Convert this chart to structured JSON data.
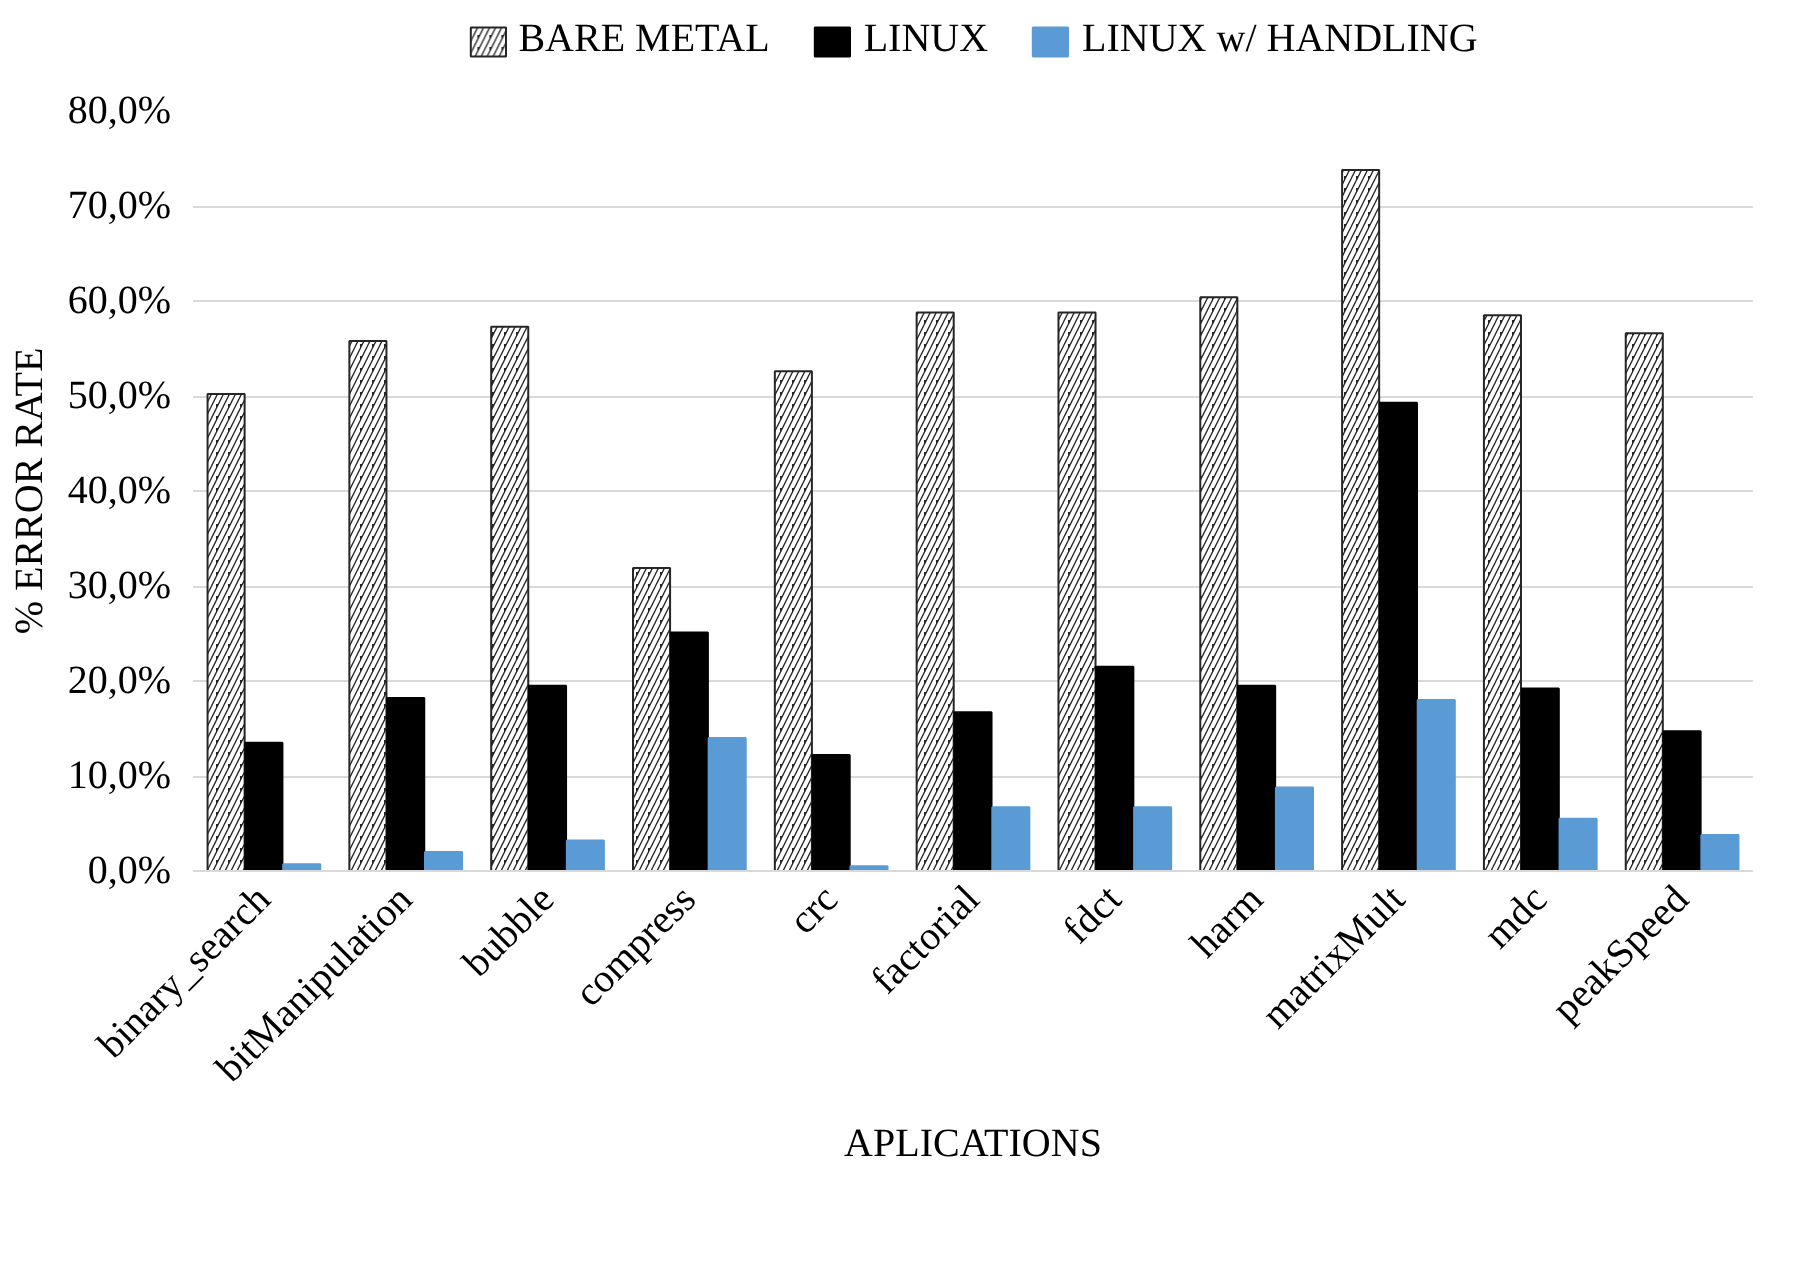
{
  "chart_data": {
    "type": "bar",
    "xlabel": "APLICATIONS",
    "ylabel": "% ERROR RATE",
    "categories": [
      "binary_search",
      "bitManipulation",
      "bubble",
      "compress",
      "crc",
      "factorial",
      "fdct",
      "harm",
      "matrixMult",
      "mdc",
      "peakSpeed"
    ],
    "series": [
      {
        "name": "BARE METAL",
        "color": "#262626",
        "values": [
          50.2,
          55.8,
          57.3,
          31.9,
          52.6,
          58.8,
          58.8,
          60.4,
          73.8,
          58.5,
          56.6
        ]
      },
      {
        "name": "LINUX",
        "color": "#000000",
        "values": [
          13.5,
          18.2,
          19.5,
          25.1,
          12.2,
          16.7,
          21.5,
          19.5,
          49.3,
          19.2,
          14.7
        ]
      },
      {
        "name": "LINUX w/ HANDLING",
        "color": "#5b9bd5",
        "values": [
          0.7,
          2.0,
          3.2,
          14.0,
          0.5,
          6.7,
          6.7,
          8.8,
          18.0,
          5.5,
          3.8
        ]
      }
    ],
    "ylim": [
      0,
      80
    ],
    "yticks": [
      {
        "value": 0,
        "label": "0,0%"
      },
      {
        "value": 10,
        "label": "10,0%"
      },
      {
        "value": 20,
        "label": "20,0%"
      },
      {
        "value": 30,
        "label": "30,0%"
      },
      {
        "value": 40,
        "label": "40,0%"
      },
      {
        "value": 50,
        "label": "50,0%"
      },
      {
        "value": 60,
        "label": "60,0%"
      },
      {
        "value": 70,
        "label": "70,0%"
      },
      {
        "value": 80,
        "label": "80,0%"
      }
    ],
    "grid": "y",
    "legend": "top"
  }
}
